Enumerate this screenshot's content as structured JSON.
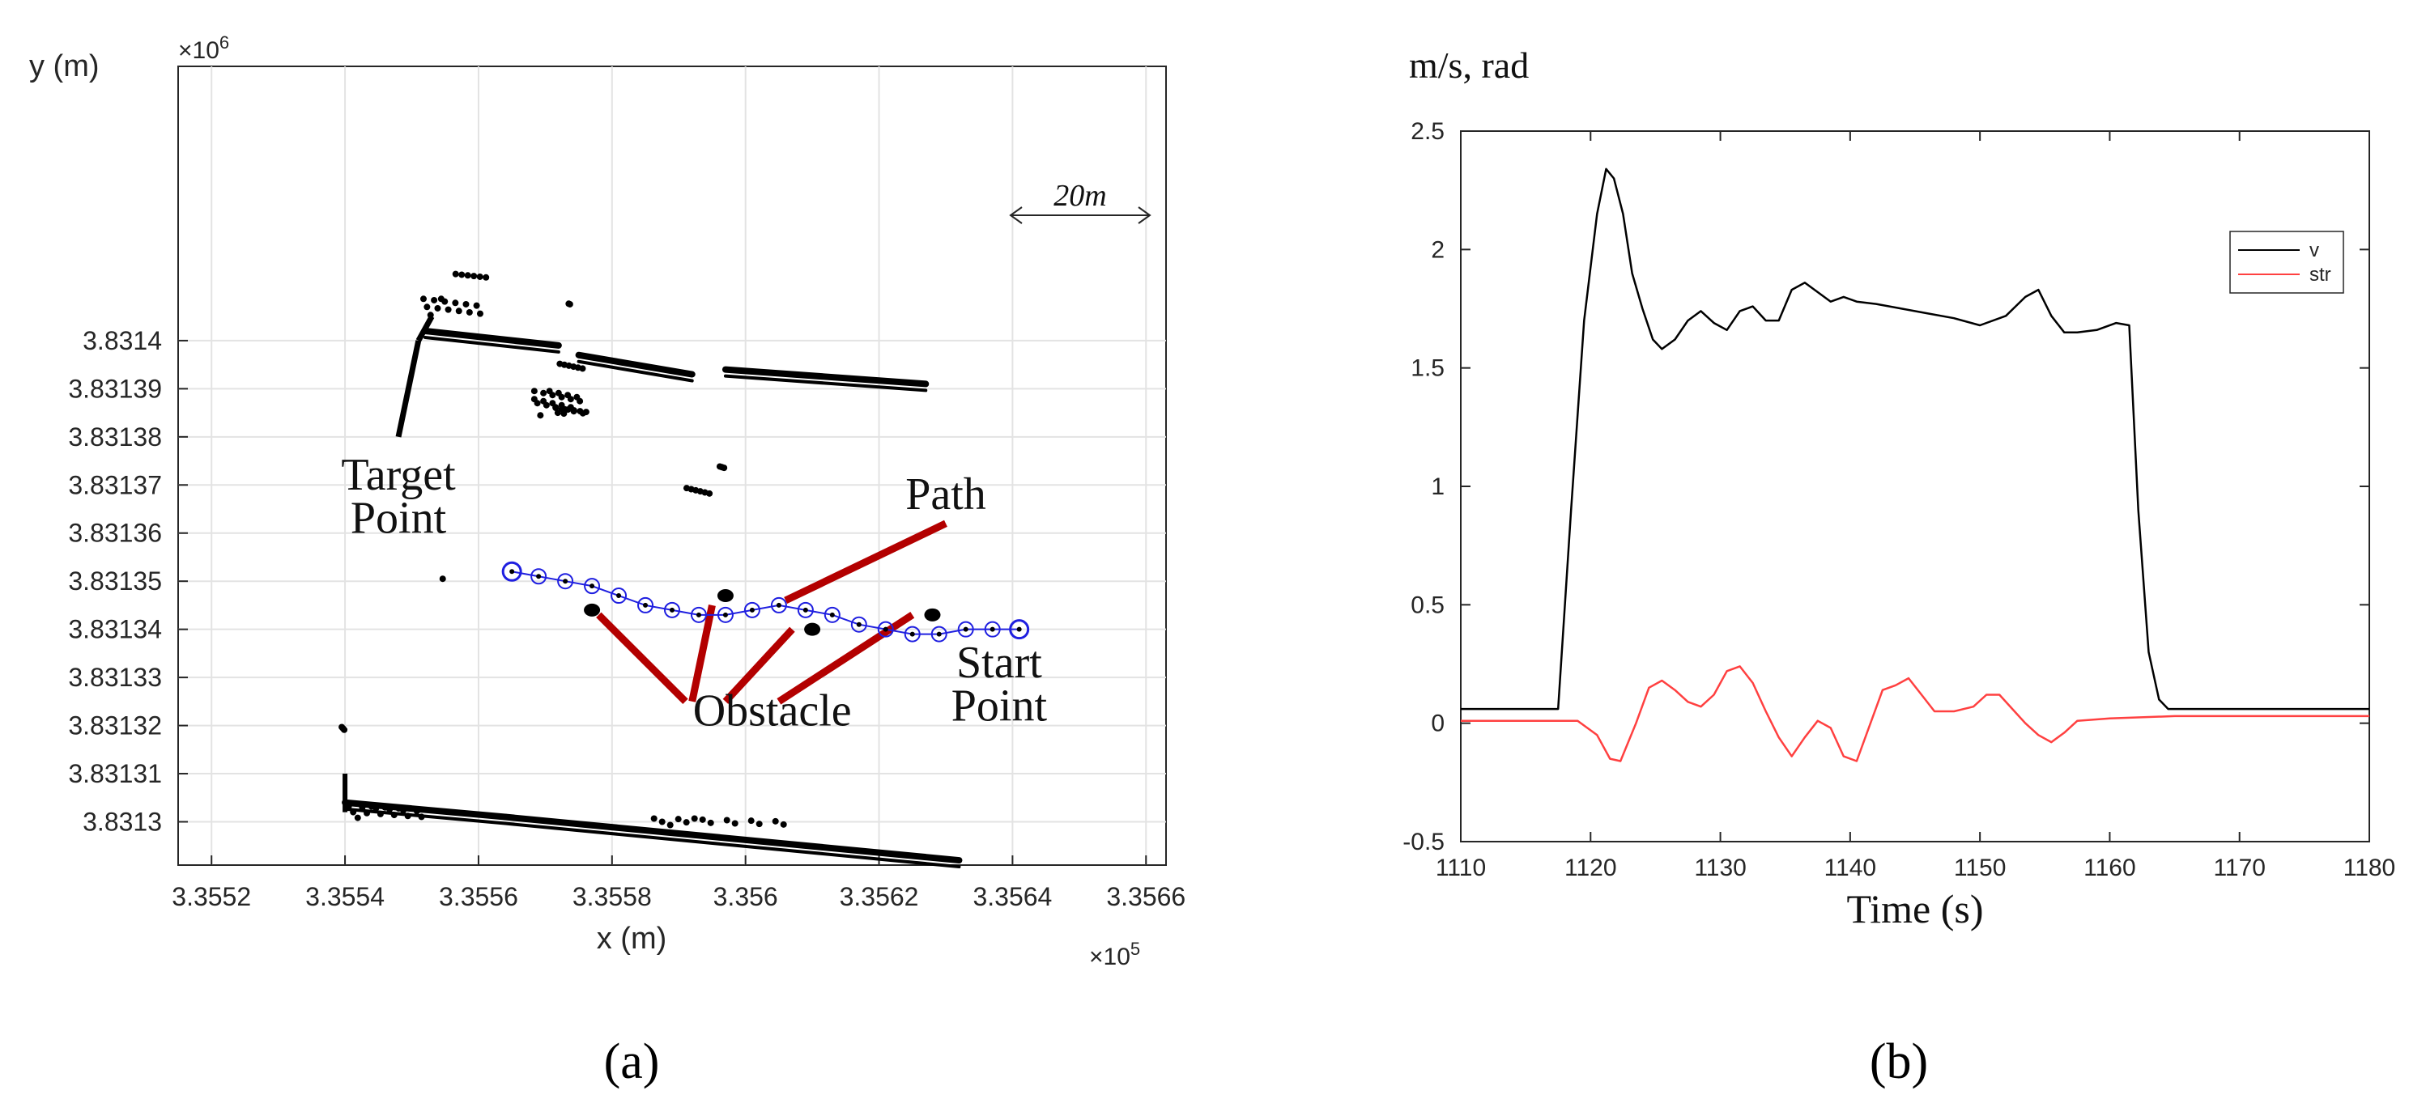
{
  "colors": {
    "points": "#000000",
    "path": "#1f1fe0",
    "leader": "#b30000",
    "grid": "#e3e3e3",
    "axis": "#262626",
    "v_line": "#000000",
    "str_line": "#ff4040"
  },
  "chart_data": [
    {
      "type": "scatter",
      "panel_label": "(a)",
      "xlabel": "x (m)",
      "ylabel": "y (m)",
      "x_exponent": "×10",
      "x_exponent_power": "5",
      "y_exponent": "×10",
      "y_exponent_power": "6",
      "xlim": [
        3.35515,
        3.35663
      ],
      "ylim": [
        3.831291,
        3.831457
      ],
      "x_ticks": [
        3.3552,
        3.3554,
        3.3556,
        3.3558,
        3.356,
        3.3562,
        3.3564,
        3.3566
      ],
      "x_tick_labels": [
        "3.3552",
        "3.3554",
        "3.3556",
        "3.3558",
        "3.356",
        "3.3562",
        "3.3564",
        "3.3566"
      ],
      "y_ticks": [
        3.8313,
        3.83131,
        3.83132,
        3.83133,
        3.83134,
        3.83135,
        3.83136,
        3.83137,
        3.83138,
        3.83139,
        3.8314
      ],
      "y_tick_labels": [
        "3.8313",
        "3.83131",
        "3.83132",
        "3.83133",
        "3.83134",
        "3.83135",
        "3.83136",
        "3.83137",
        "3.83138",
        "3.83139",
        "3.8314"
      ],
      "grid": true,
      "scale_bar": "20m",
      "series": [
        {
          "name": "path",
          "x": [
            3.35565,
            3.35569,
            3.35573,
            3.35577,
            3.35581,
            3.35585,
            3.35589,
            3.35593,
            3.35597,
            3.35601,
            3.35605,
            3.35609,
            3.35613,
            3.35617,
            3.35621,
            3.35625,
            3.35629,
            3.35633,
            3.35637,
            3.35641
          ],
          "y": [
            3.831352,
            3.831351,
            3.83135,
            3.831349,
            3.831347,
            3.831345,
            3.831344,
            3.831343,
            3.831343,
            3.831344,
            3.831345,
            3.831344,
            3.831343,
            3.831341,
            3.83134,
            3.831339,
            3.831339,
            3.83134,
            3.83134,
            3.83134
          ]
        },
        {
          "name": "obstacles",
          "x": [
            3.35577,
            3.35597,
            3.3561,
            3.35628
          ],
          "y": [
            3.831344,
            3.831347,
            3.83134,
            3.831343
          ]
        },
        {
          "name": "upper boundary",
          "segments": [
            {
              "x": [
                3.35552,
                3.35572
              ],
              "y": [
                3.831402,
                3.831399
              ]
            },
            {
              "x": [
                3.35575,
                3.35592
              ],
              "y": [
                3.831397,
                3.831393
              ]
            },
            {
              "x": [
                3.35597,
                3.35627
              ],
              "y": [
                3.831394,
                3.831391
              ]
            }
          ]
        },
        {
          "name": "lower boundary",
          "segments": [
            {
              "x": [
                3.3554,
                3.35564
              ],
              "y": [
                3.831304,
                3.831301
              ]
            },
            {
              "x": [
                3.35564,
                3.35632
              ],
              "y": [
                3.831301,
                3.831292
              ]
            }
          ]
        }
      ],
      "annotations": [
        {
          "text": "Target",
          "x": 3.35548,
          "y": 3.831369
        },
        {
          "text": "Point",
          "x": 3.35548,
          "y": 3.83136
        },
        {
          "text": "Path",
          "x": 3.3563,
          "y": 3.831365
        },
        {
          "text": "Obstacle",
          "x": 3.35604,
          "y": 3.83132
        },
        {
          "text": "Start",
          "x": 3.35638,
          "y": 3.83133
        },
        {
          "text": "Point",
          "x": 3.35638,
          "y": 3.831321
        }
      ]
    },
    {
      "type": "line",
      "panel_label": "(b)",
      "ylabel": "m/s, rad",
      "xlabel": "Time (s)",
      "xlim": [
        1110,
        1180
      ],
      "ylim": [
        -0.5,
        2.5
      ],
      "x_ticks": [
        1110,
        1120,
        1130,
        1140,
        1150,
        1160,
        1170,
        1180
      ],
      "x_tick_labels": [
        "1110",
        "1120",
        "1130",
        "1140",
        "1150",
        "1160",
        "1170",
        "1180"
      ],
      "y_ticks": [
        -0.5,
        0,
        0.5,
        1,
        1.5,
        2,
        2.5
      ],
      "y_tick_labels": [
        "-0.5",
        "0",
        "0.5",
        "1",
        "1.5",
        "2",
        "2.5"
      ],
      "grid": false,
      "legend_position": "top-right",
      "series": [
        {
          "name": "v",
          "color": "#000000",
          "x": [
            1110,
            1117.5,
            1118.5,
            1119.5,
            1120.5,
            1121.2,
            1121.8,
            1122.5,
            1123.2,
            1124.0,
            1124.8,
            1125.5,
            1126.5,
            1127.5,
            1128.5,
            1129.5,
            1130.5,
            1131.5,
            1132.5,
            1133.5,
            1134.5,
            1135.5,
            1136.5,
            1137.5,
            1138.5,
            1139.5,
            1140.5,
            1142,
            1144,
            1146,
            1148,
            1150,
            1152,
            1153.5,
            1154.5,
            1155.5,
            1156.5,
            1157.5,
            1159,
            1160.5,
            1161.5,
            1162.2,
            1163.0,
            1163.8,
            1164.5,
            1165.5,
            1180
          ],
          "y": [
            0.06,
            0.06,
            0.9,
            1.7,
            2.15,
            2.34,
            2.3,
            2.15,
            1.9,
            1.75,
            1.62,
            1.58,
            1.62,
            1.7,
            1.74,
            1.69,
            1.66,
            1.74,
            1.76,
            1.7,
            1.7,
            1.83,
            1.86,
            1.82,
            1.78,
            1.8,
            1.78,
            1.77,
            1.75,
            1.73,
            1.71,
            1.68,
            1.72,
            1.8,
            1.83,
            1.72,
            1.65,
            1.65,
            1.66,
            1.69,
            1.68,
            0.9,
            0.3,
            0.1,
            0.06,
            0.06,
            0.06
          ]
        },
        {
          "name": "str",
          "color": "#ff4040",
          "x": [
            1110,
            1119,
            1120.5,
            1121.5,
            1122.3,
            1123.5,
            1124.5,
            1125.5,
            1126.5,
            1127.5,
            1128.5,
            1129.5,
            1130.5,
            1131.5,
            1132.5,
            1133.5,
            1134.5,
            1135.5,
            1136.5,
            1137.5,
            1138.5,
            1139.5,
            1140.5,
            1141.5,
            1142.5,
            1143.5,
            1144.5,
            1145.5,
            1146.5,
            1148,
            1149.5,
            1150.5,
            1151.5,
            1152.5,
            1153.5,
            1154.5,
            1155.5,
            1156.5,
            1157.5,
            1160,
            1165,
            1180
          ],
          "y": [
            0.01,
            0.01,
            -0.05,
            -0.15,
            -0.16,
            0.0,
            0.15,
            0.18,
            0.14,
            0.09,
            0.07,
            0.12,
            0.22,
            0.24,
            0.17,
            0.05,
            -0.06,
            -0.14,
            -0.06,
            0.01,
            -0.02,
            -0.14,
            -0.16,
            -0.01,
            0.14,
            0.16,
            0.19,
            0.12,
            0.05,
            0.05,
            0.07,
            0.12,
            0.12,
            0.06,
            0.0,
            -0.05,
            -0.08,
            -0.04,
            0.01,
            0.02,
            0.03,
            0.03
          ]
        }
      ]
    }
  ]
}
